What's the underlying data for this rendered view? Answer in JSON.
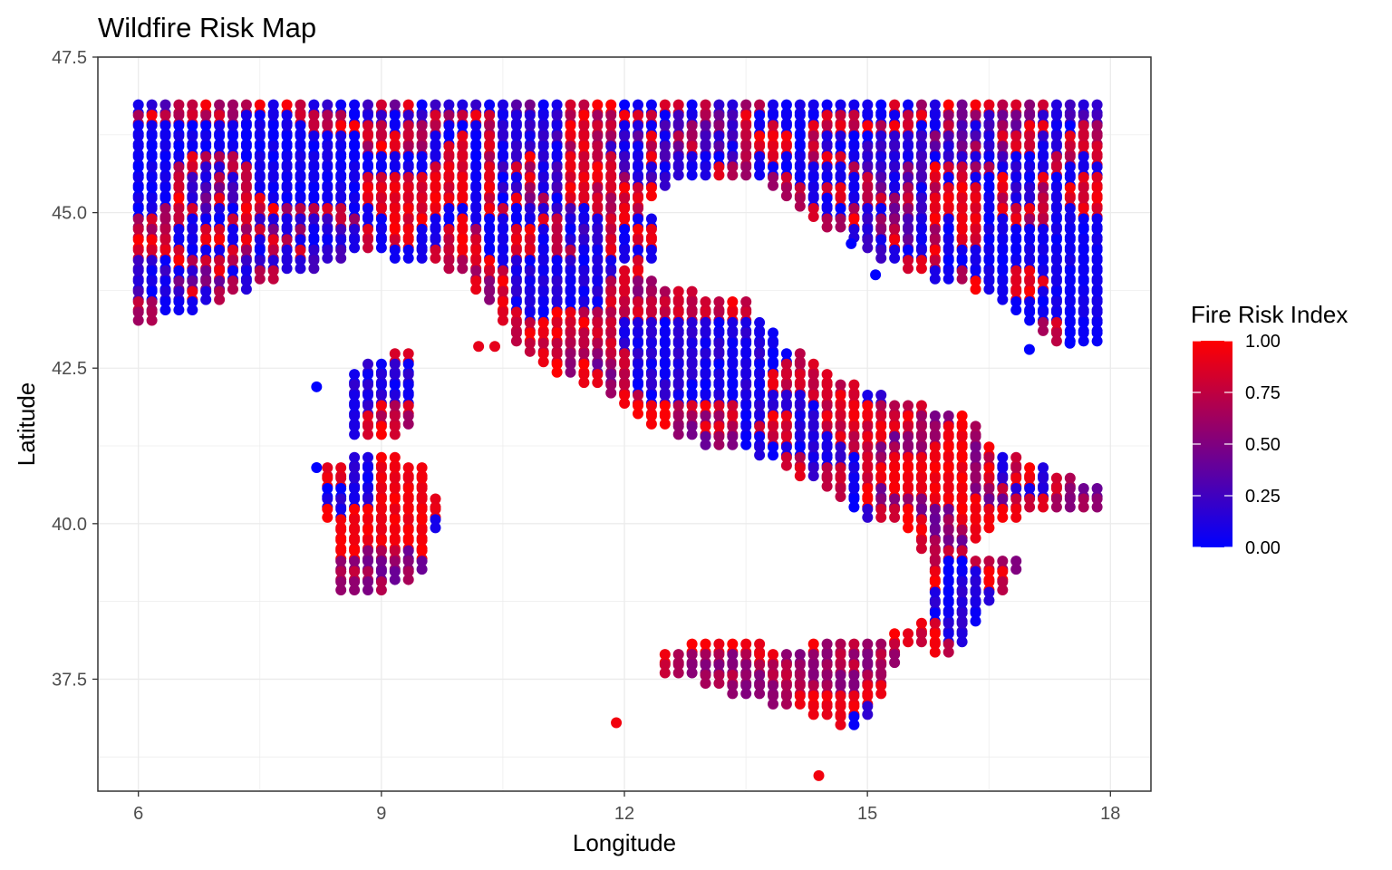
{
  "chart_data": {
    "type": "scatter",
    "title": "Wildfire Risk Map",
    "xlabel": "Longitude",
    "ylabel": "Latitude",
    "xlim": [
      5.5,
      18.5
    ],
    "ylim": [
      35.7,
      47.5
    ],
    "x_ticks": [
      6,
      9,
      12,
      15,
      18
    ],
    "x_tick_labels": [
      "6",
      "9",
      "12",
      "15",
      "18"
    ],
    "y_ticks": [
      37.5,
      40.0,
      42.5,
      45.0,
      47.5
    ],
    "y_tick_labels": [
      "37.5",
      "40.0",
      "42.5",
      "45.0",
      "47.5"
    ],
    "grid": true,
    "legend": {
      "title": "Fire Risk Index",
      "placement": "right",
      "low_color": "#0000ff",
      "high_color": "#ff0000",
      "breaks": [
        0.0,
        0.25,
        0.5,
        0.75,
        1.0
      ],
      "break_labels": [
        "0.00",
        "0.25",
        "0.50",
        "0.75",
        "1.00"
      ]
    },
    "grid_spacing_deg": 0.1667,
    "regions": [
      {
        "name_id": "alps",
        "polygon": [
          [
            6.0,
            46.9
          ],
          [
            17.9,
            46.9
          ],
          [
            17.9,
            42.9
          ],
          [
            17.4,
            42.9
          ],
          [
            16.8,
            43.6
          ],
          [
            16.2,
            43.9
          ],
          [
            15.2,
            44.3
          ],
          [
            14.6,
            44.8
          ],
          [
            14.0,
            45.3
          ],
          [
            13.6,
            45.7
          ],
          [
            13.0,
            45.7
          ],
          [
            12.6,
            45.6
          ],
          [
            12.3,
            45.3
          ],
          [
            12.4,
            44.6
          ],
          [
            12.3,
            44.2
          ],
          [
            11.6,
            44.3
          ],
          [
            10.8,
            44.3
          ],
          [
            10.3,
            44.0
          ],
          [
            9.5,
            44.3
          ],
          [
            8.8,
            44.5
          ],
          [
            8.1,
            44.2
          ],
          [
            7.3,
            43.8
          ],
          [
            6.8,
            43.6
          ],
          [
            6.0,
            43.3
          ]
        ],
        "risk": [
          [
            0.0,
            1.0
          ],
          [
            0.0,
            0.3
          ],
          [
            0.6,
            1.0
          ],
          [
            0.0,
            0.1
          ],
          [
            0.8,
            1.0
          ]
        ]
      },
      {
        "name_id": "italy-north",
        "polygon": [
          [
            10.1,
            44.0
          ],
          [
            10.8,
            44.3
          ],
          [
            11.6,
            44.3
          ],
          [
            12.3,
            44.1
          ],
          [
            12.6,
            43.8
          ],
          [
            13.5,
            43.6
          ],
          [
            14.0,
            42.9
          ],
          [
            14.7,
            42.3
          ],
          [
            15.5,
            42.0
          ],
          [
            15.8,
            41.9
          ],
          [
            16.2,
            41.8
          ],
          [
            16.6,
            41.2
          ],
          [
            17.2,
            40.9
          ],
          [
            17.9,
            40.6
          ],
          [
            17.9,
            40.3
          ],
          [
            17.2,
            40.4
          ],
          [
            16.6,
            40.1
          ],
          [
            16.2,
            39.6
          ],
          [
            16.9,
            39.4
          ],
          [
            16.4,
            38.6
          ],
          [
            16.0,
            37.9
          ],
          [
            15.6,
            38.3
          ],
          [
            15.8,
            38.9
          ],
          [
            15.6,
            40.0
          ],
          [
            15.0,
            40.2
          ],
          [
            14.3,
            40.8
          ],
          [
            13.7,
            41.2
          ],
          [
            12.9,
            41.4
          ],
          [
            12.2,
            41.8
          ],
          [
            11.6,
            42.3
          ],
          [
            11.1,
            42.5
          ],
          [
            10.7,
            42.9
          ],
          [
            10.5,
            43.4
          ]
        ],
        "risk": [
          [
            0.7,
            1.0
          ],
          [
            0.0,
            0.2
          ],
          [
            0.7,
            1.0
          ],
          [
            0.4,
            0.7
          ],
          [
            0.9,
            1.0
          ]
        ]
      },
      {
        "name_id": "sicily",
        "polygon": [
          [
            12.5,
            38.0
          ],
          [
            13.3,
            38.2
          ],
          [
            14.0,
            38.0
          ],
          [
            15.0,
            38.2
          ],
          [
            15.6,
            38.3
          ],
          [
            15.2,
            37.5
          ],
          [
            15.1,
            37.1
          ],
          [
            14.9,
            36.7
          ],
          [
            14.4,
            37.0
          ],
          [
            13.5,
            37.3
          ],
          [
            12.5,
            37.7
          ]
        ],
        "risk": [
          [
            0.8,
            1.0
          ],
          [
            0.0,
            0.2
          ],
          [
            0.9,
            1.0
          ],
          [
            0.5,
            0.8
          ]
        ]
      },
      {
        "name_id": "sardinia",
        "polygon": [
          [
            8.3,
            41.0
          ],
          [
            9.0,
            41.2
          ],
          [
            9.6,
            40.9
          ],
          [
            9.7,
            40.2
          ],
          [
            9.6,
            39.3
          ],
          [
            9.0,
            39.0
          ],
          [
            8.4,
            39.0
          ],
          [
            8.4,
            39.7
          ],
          [
            8.3,
            40.5
          ]
        ],
        "risk": [
          [
            0.8,
            1.0
          ],
          [
            0.0,
            0.2
          ],
          [
            0.9,
            1.0
          ],
          [
            0.4,
            0.8
          ]
        ]
      },
      {
        "name_id": "corsica",
        "polygon": [
          [
            8.6,
            41.4
          ],
          [
            9.2,
            41.4
          ],
          [
            9.5,
            42.0
          ],
          [
            9.4,
            42.9
          ],
          [
            9.0,
            42.7
          ],
          [
            8.6,
            42.4
          ],
          [
            8.6,
            41.9
          ]
        ],
        "risk": [
          [
            0.8,
            1.0
          ],
          [
            0.0,
            0.2
          ],
          [
            0.6,
            1.0
          ]
        ]
      }
    ],
    "extra_points": [
      {
        "x": 11.9,
        "y": 36.8,
        "risk": 0.95
      },
      {
        "x": 14.4,
        "y": 35.95,
        "risk": 0.95
      },
      {
        "x": 10.2,
        "y": 42.85,
        "risk": 0.9
      },
      {
        "x": 10.4,
        "y": 42.85,
        "risk": 0.9
      },
      {
        "x": 8.2,
        "y": 42.2,
        "risk": 0.0
      },
      {
        "x": 8.2,
        "y": 40.9,
        "risk": 0.0
      },
      {
        "x": 14.8,
        "y": 44.5,
        "risk": 0.0
      },
      {
        "x": 15.1,
        "y": 44.0,
        "risk": 0.0
      },
      {
        "x": 17.0,
        "y": 42.8,
        "risk": 0.0
      },
      {
        "x": 17.5,
        "y": 42.9,
        "risk": 0.0
      }
    ]
  }
}
